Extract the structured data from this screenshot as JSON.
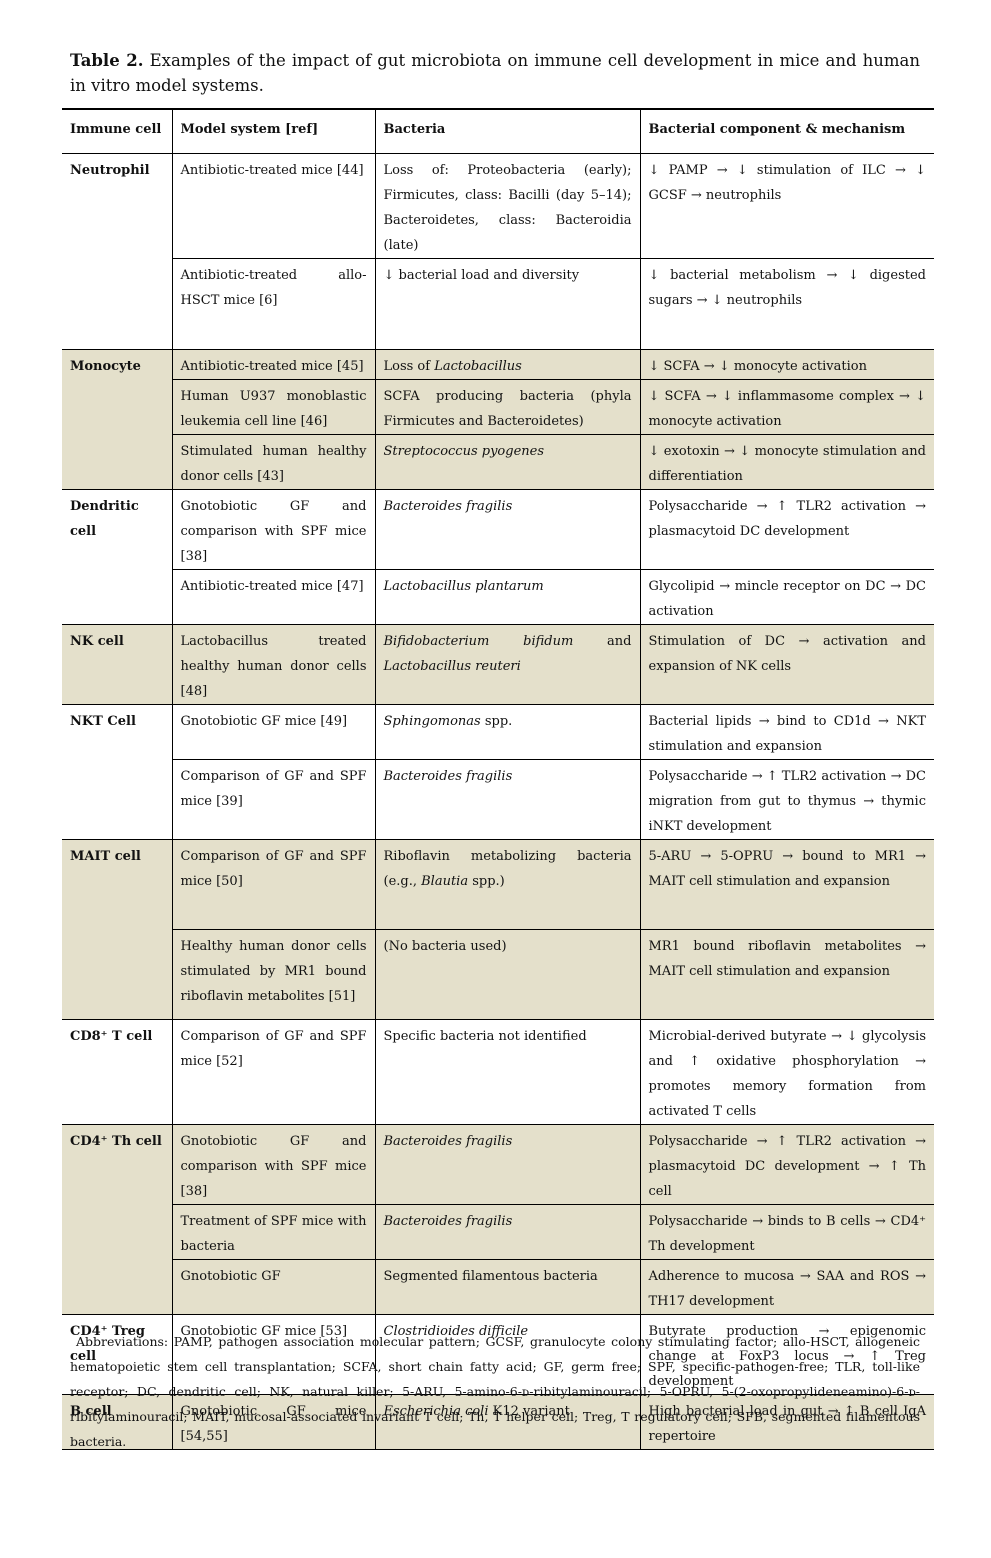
{
  "header": {
    "label": "Table 2.",
    "title": "Examples of the impact of gut microbiota on immune cell development in mice and human in vitro model systems."
  },
  "table": {
    "columns": [
      "Immune cell",
      "Model system [ref]",
      "Bacteria",
      "Bacterial component & mechanism"
    ],
    "groups": [
      {
        "cell": "Neutrophil",
        "shaded": false,
        "rows": [
          [
            "Antibiotic-treated mice [44]",
            "Loss of: Proteobacteria (early); Firmicutes, class: Bacilli (day 5–14); Bacteroidetes, class: Bacteroidia (late)",
            "↓ PAMP → ↓ stimulation of ILC → ↓ GCSF → neutrophils"
          ],
          [
            "Antibiotic-treated allo-HSCT mice [6]",
            "↓ bacterial load and diversity",
            "↓ bacterial metabolism → ↓ digested sugars → ↓ neutrophils"
          ]
        ]
      },
      {
        "cell": "Monocyte",
        "shaded": true,
        "rows": [
          [
            "Antibiotic-treated mice [45]",
            [
              {
                "text": "Loss of "
              },
              {
                "text": "Lactobacillus",
                "italic": true
              }
            ],
            "↓ SCFA → ↓ monocyte activation"
          ],
          [
            "Human U937 monoblastic leukemia cell line [46]",
            "SCFA producing bacteria (phyla Firmicutes and Bacteroidetes)",
            "↓ SCFA → ↓ inflammasome complex → ↓ monocyte activation"
          ],
          [
            "Stimulated human healthy donor cells [43]",
            [
              {
                "text": "Streptococcus pyogenes",
                "italic": true
              }
            ],
            "↓ exotoxin → ↓ monocyte stimulation and differentiation"
          ]
        ]
      },
      {
        "cell": "Dendritic cell",
        "shaded": false,
        "rows": [
          [
            "Gnotobiotic GF and comparison with SPF mice [38]",
            [
              {
                "text": "Bacteroides fragilis",
                "italic": true
              }
            ],
            "Polysaccharide → ↑ TLR2 activation → plasmacytoid DC development"
          ],
          [
            "Antibiotic-treated mice [47]",
            [
              {
                "text": "Lactobacillus plantarum",
                "italic": true
              }
            ],
            "Glycolipid → mincle receptor on DC → DC activation"
          ]
        ]
      },
      {
        "cell": "NK cell",
        "shaded": true,
        "rows": [
          [
            "Lactobacillus treated healthy human donor cells [48]",
            [
              {
                "text": "Bifidobacterium bifidum",
                "italic": true
              },
              {
                "text": " and "
              },
              {
                "text": "Lactobacillus reuteri",
                "italic": true
              }
            ],
            "Stimulation of DC → activation and expansion of NK cells"
          ]
        ]
      },
      {
        "cell": "NKT Cell",
        "shaded": false,
        "rows": [
          [
            "Gnotobiotic GF mice [49]",
            [
              {
                "text": "Sphingomonas",
                "italic": true
              },
              {
                "text": " spp."
              }
            ],
            "Bacterial lipids → bind to CD1d → NKT stimulation and expansion"
          ],
          [
            "Comparison of GF and SPF mice [39]",
            [
              {
                "text": "Bacteroides fragilis",
                "italic": true
              }
            ],
            "Polysaccharide → ↑ TLR2 activation → DC migration from gut to thymus → thymic iNKT development"
          ]
        ]
      },
      {
        "cell": "MAIT cell",
        "shaded": true,
        "rows": [
          [
            "Comparison of GF and SPF mice [50]",
            [
              {
                "text": "Riboflavin metabolizing bacteria (e.g., "
              },
              {
                "text": "Blautia",
                "italic": true
              },
              {
                "text": " spp.)"
              }
            ],
            "5-ARU → 5-OPRU → bound to MR1 → MAIT cell stimulation and expansion"
          ],
          [
            "Healthy human donor cells stimulated by MR1 bound riboflavin metabolites [51]",
            "(No bacteria used)",
            "MR1 bound riboflavin metabolites → MAIT cell stimulation and expansion"
          ]
        ]
      },
      {
        "cell": "CD8⁺ T cell",
        "shaded": false,
        "rows": [
          [
            "Comparison of GF and SPF mice [52]",
            "Specific bacteria not identified",
            "Microbial-derived butyrate → ↓ glycolysis and ↑ oxidative phosphorylation → promotes memory formation from activated T cells"
          ]
        ]
      },
      {
        "cell": "CD4⁺ Th cell",
        "shaded": true,
        "rows": [
          [
            "Gnotobiotic GF and comparison with SPF mice [38]",
            [
              {
                "text": "Bacteroides fragilis",
                "italic": true
              }
            ],
            "Polysaccharide → ↑ TLR2 activation → plasmacytoid DC development → ↑ Th cell"
          ],
          [
            "Treatment of SPF mice with bacteria",
            [
              {
                "text": "Bacteroides fragilis",
                "italic": true
              }
            ],
            "Polysaccharide → binds to B cells → CD4⁺ Th development"
          ],
          [
            "Gnotobiotic GF",
            "Segmented filamentous bacteria",
            "Adherence to mucosa → SAA and ROS → TH17 development"
          ]
        ]
      },
      {
        "cell": "CD4⁺ Treg cell",
        "shaded": false,
        "rows": [
          [
            "Gnotobiotic GF mice [53]",
            [
              {
                "text": "Clostridioides difficile",
                "italic": true
              }
            ],
            "Butyrate production → epigenomic change at FoxP3 locus → ↑ Treg development"
          ]
        ]
      },
      {
        "cell": "B cell",
        "shaded": true,
        "rows": [
          [
            "Gnotobiotic GF mice [54,55]",
            [
              {
                "text": "Escherichia coli",
                "italic": true
              },
              {
                "text": " K12 variant"
              }
            ],
            "High bacterial load in gut → ↑ B cell IgA repertoire"
          ]
        ]
      }
    ]
  },
  "footnote": "Abbreviations: PAMP, pathogen association molecular pattern; GCSF, granulocyte colony stimulating factor; allo-HSCT, allogeneic hematopoietic stem cell transplantation; SCFA, short chain fatty acid; GF, germ free; SPF, specific-pathogen-free; TLR, toll-like receptor; DC, dendritic cell; NK, natural killer; 5-ARU, 5-amino-6-ᴅ-ribitylaminouracil; 5-OPRU, 5-(2-oxopropylideneamino)-6-ᴅ-ribitylaminouracil; MAIT, mucosal-associated invariant T cell; Th, T helper cell; Treg, T regulatory cell; SFB, segmented filamentous bacteria."
}
